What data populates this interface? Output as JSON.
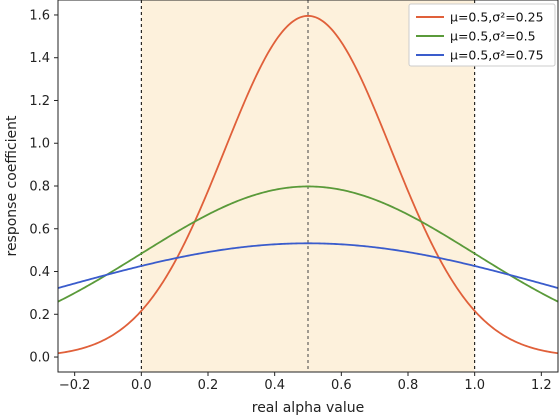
{
  "chart_data": {
    "type": "line",
    "xlabel": "real alpha value",
    "ylabel": "response  coefficient",
    "xlim": [
      -0.25,
      1.25
    ],
    "ylim": [
      -0.07,
      1.67
    ],
    "xticks": [
      "−0.2",
      "0.0",
      "0.2",
      "0.4",
      "0.6",
      "0.8",
      "1.0",
      "1.2"
    ],
    "xtick_values": [
      -0.2,
      0.0,
      0.2,
      0.4,
      0.6,
      0.8,
      1.0,
      1.2
    ],
    "yticks": [
      "0.0",
      "0.2",
      "0.4",
      "0.6",
      "0.8",
      "1.0",
      "1.2",
      "1.4",
      "1.6"
    ],
    "ytick_values": [
      0.0,
      0.2,
      0.4,
      0.6,
      0.8,
      1.0,
      1.2,
      1.4,
      1.6
    ],
    "shaded_region": {
      "x_from": 0.0,
      "x_to": 1.0,
      "color": "#fdf1dc"
    },
    "vertical_lines": [
      {
        "x": 0.0,
        "style": "dashed",
        "color": "#000000"
      },
      {
        "x": 0.5,
        "style": "dashed",
        "color": "#444444"
      },
      {
        "x": 1.0,
        "style": "dashed",
        "color": "#000000"
      }
    ],
    "legend_position": "top-right",
    "grid": false,
    "series": [
      {
        "name": "μ=0.5,σ²=0.25",
        "color": "#e0603a",
        "mu": 0.5,
        "sigma": 0.25,
        "x": [
          -0.25,
          0.0,
          0.25,
          0.5,
          0.75,
          1.0,
          1.25
        ],
        "y": [
          0.018,
          0.216,
          0.968,
          1.596,
          0.968,
          0.216,
          0.018
        ]
      },
      {
        "name": "μ=0.5,σ²=0.5",
        "color": "#5a9a3a",
        "mu": 0.5,
        "sigma": 0.5,
        "x": [
          -0.25,
          0.0,
          0.25,
          0.5,
          0.75,
          1.0,
          1.25
        ],
        "y": [
          0.259,
          0.484,
          0.704,
          0.798,
          0.704,
          0.484,
          0.259
        ]
      },
      {
        "name": "μ=0.5,σ²=0.75",
        "color": "#3a5ccc",
        "mu": 0.5,
        "sigma": 0.75,
        "x": [
          -0.25,
          0.0,
          0.25,
          0.5,
          0.75,
          1.0,
          1.25
        ],
        "y": [
          0.323,
          0.426,
          0.503,
          0.532,
          0.503,
          0.426,
          0.323
        ]
      }
    ]
  }
}
